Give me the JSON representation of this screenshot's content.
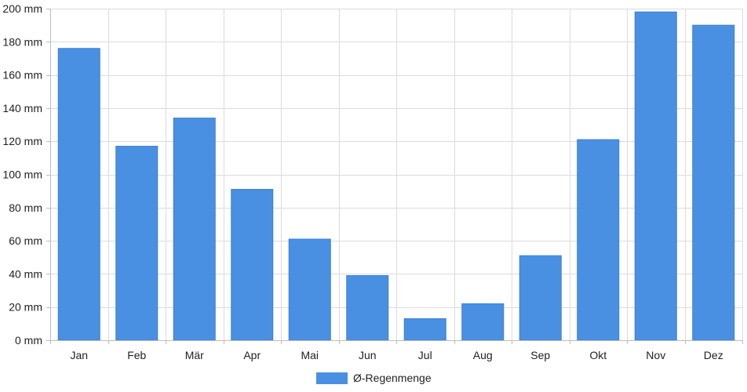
{
  "chart_data": {
    "type": "bar",
    "categories": [
      "Jan",
      "Feb",
      "Mär",
      "Apr",
      "Mai",
      "Jun",
      "Jul",
      "Aug",
      "Sep",
      "Okt",
      "Nov",
      "Dez"
    ],
    "series": [
      {
        "name": "Ø-Regenmenge",
        "values": [
          176,
          117,
          134,
          91,
          61,
          39,
          13,
          22,
          51,
          121,
          198,
          190
        ],
        "color": "#4a90e2"
      }
    ],
    "ylim": [
      0,
      200
    ],
    "yticks": [
      0,
      20,
      40,
      60,
      80,
      100,
      120,
      140,
      160,
      180,
      200
    ],
    "ytick_unit": "mm",
    "grid": true,
    "legend_position": "bottom-center"
  }
}
